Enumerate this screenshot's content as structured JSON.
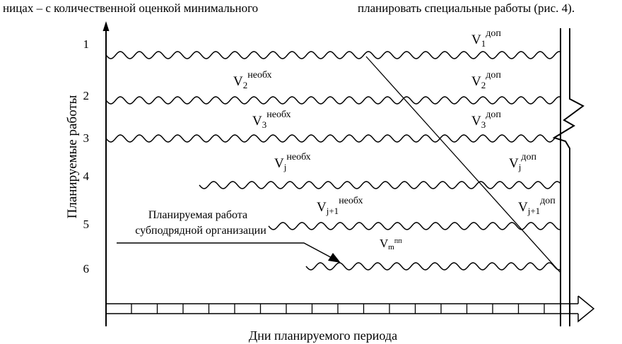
{
  "header": {
    "left_fragment": "ницах – с количественной оценкой минимального",
    "right_fragment": "планировать специальные работы (рис. 4)."
  },
  "axes": {
    "y_label": "Планируемые работы",
    "x_label": "Дни планируемого периода"
  },
  "rows": [
    "1",
    "2",
    "3",
    "4",
    "5",
    "6"
  ],
  "volume_labels": {
    "row1_dop": {
      "base": "V",
      "sub": "1",
      "sup": "доп"
    },
    "row2_need": {
      "base": "V",
      "sub": "2",
      "sup": "необх"
    },
    "row2_dop": {
      "base": "V",
      "sub": "2",
      "sup": "доп"
    },
    "row3_need": {
      "base": "V",
      "sub": "3",
      "sup": "необх"
    },
    "row3_dop": {
      "base": "V",
      "sub": "3",
      "sup": "доп"
    },
    "row4_need": {
      "base": "V",
      "sub": "j",
      "sup": "необх"
    },
    "row4_dop": {
      "base": "V",
      "sub": "j",
      "sup": "доп"
    },
    "row5_need": {
      "base": "V",
      "sub": "j+1",
      "sup": "необх"
    },
    "row5_dop": {
      "base": "V",
      "sub": "j+1",
      "sup": "доп"
    },
    "row6_sub": {
      "base": "V",
      "sub": "m",
      "sup": "пп"
    }
  },
  "callout": {
    "line1": "Планируемая работа",
    "line2": "субподрядной организации"
  }
}
